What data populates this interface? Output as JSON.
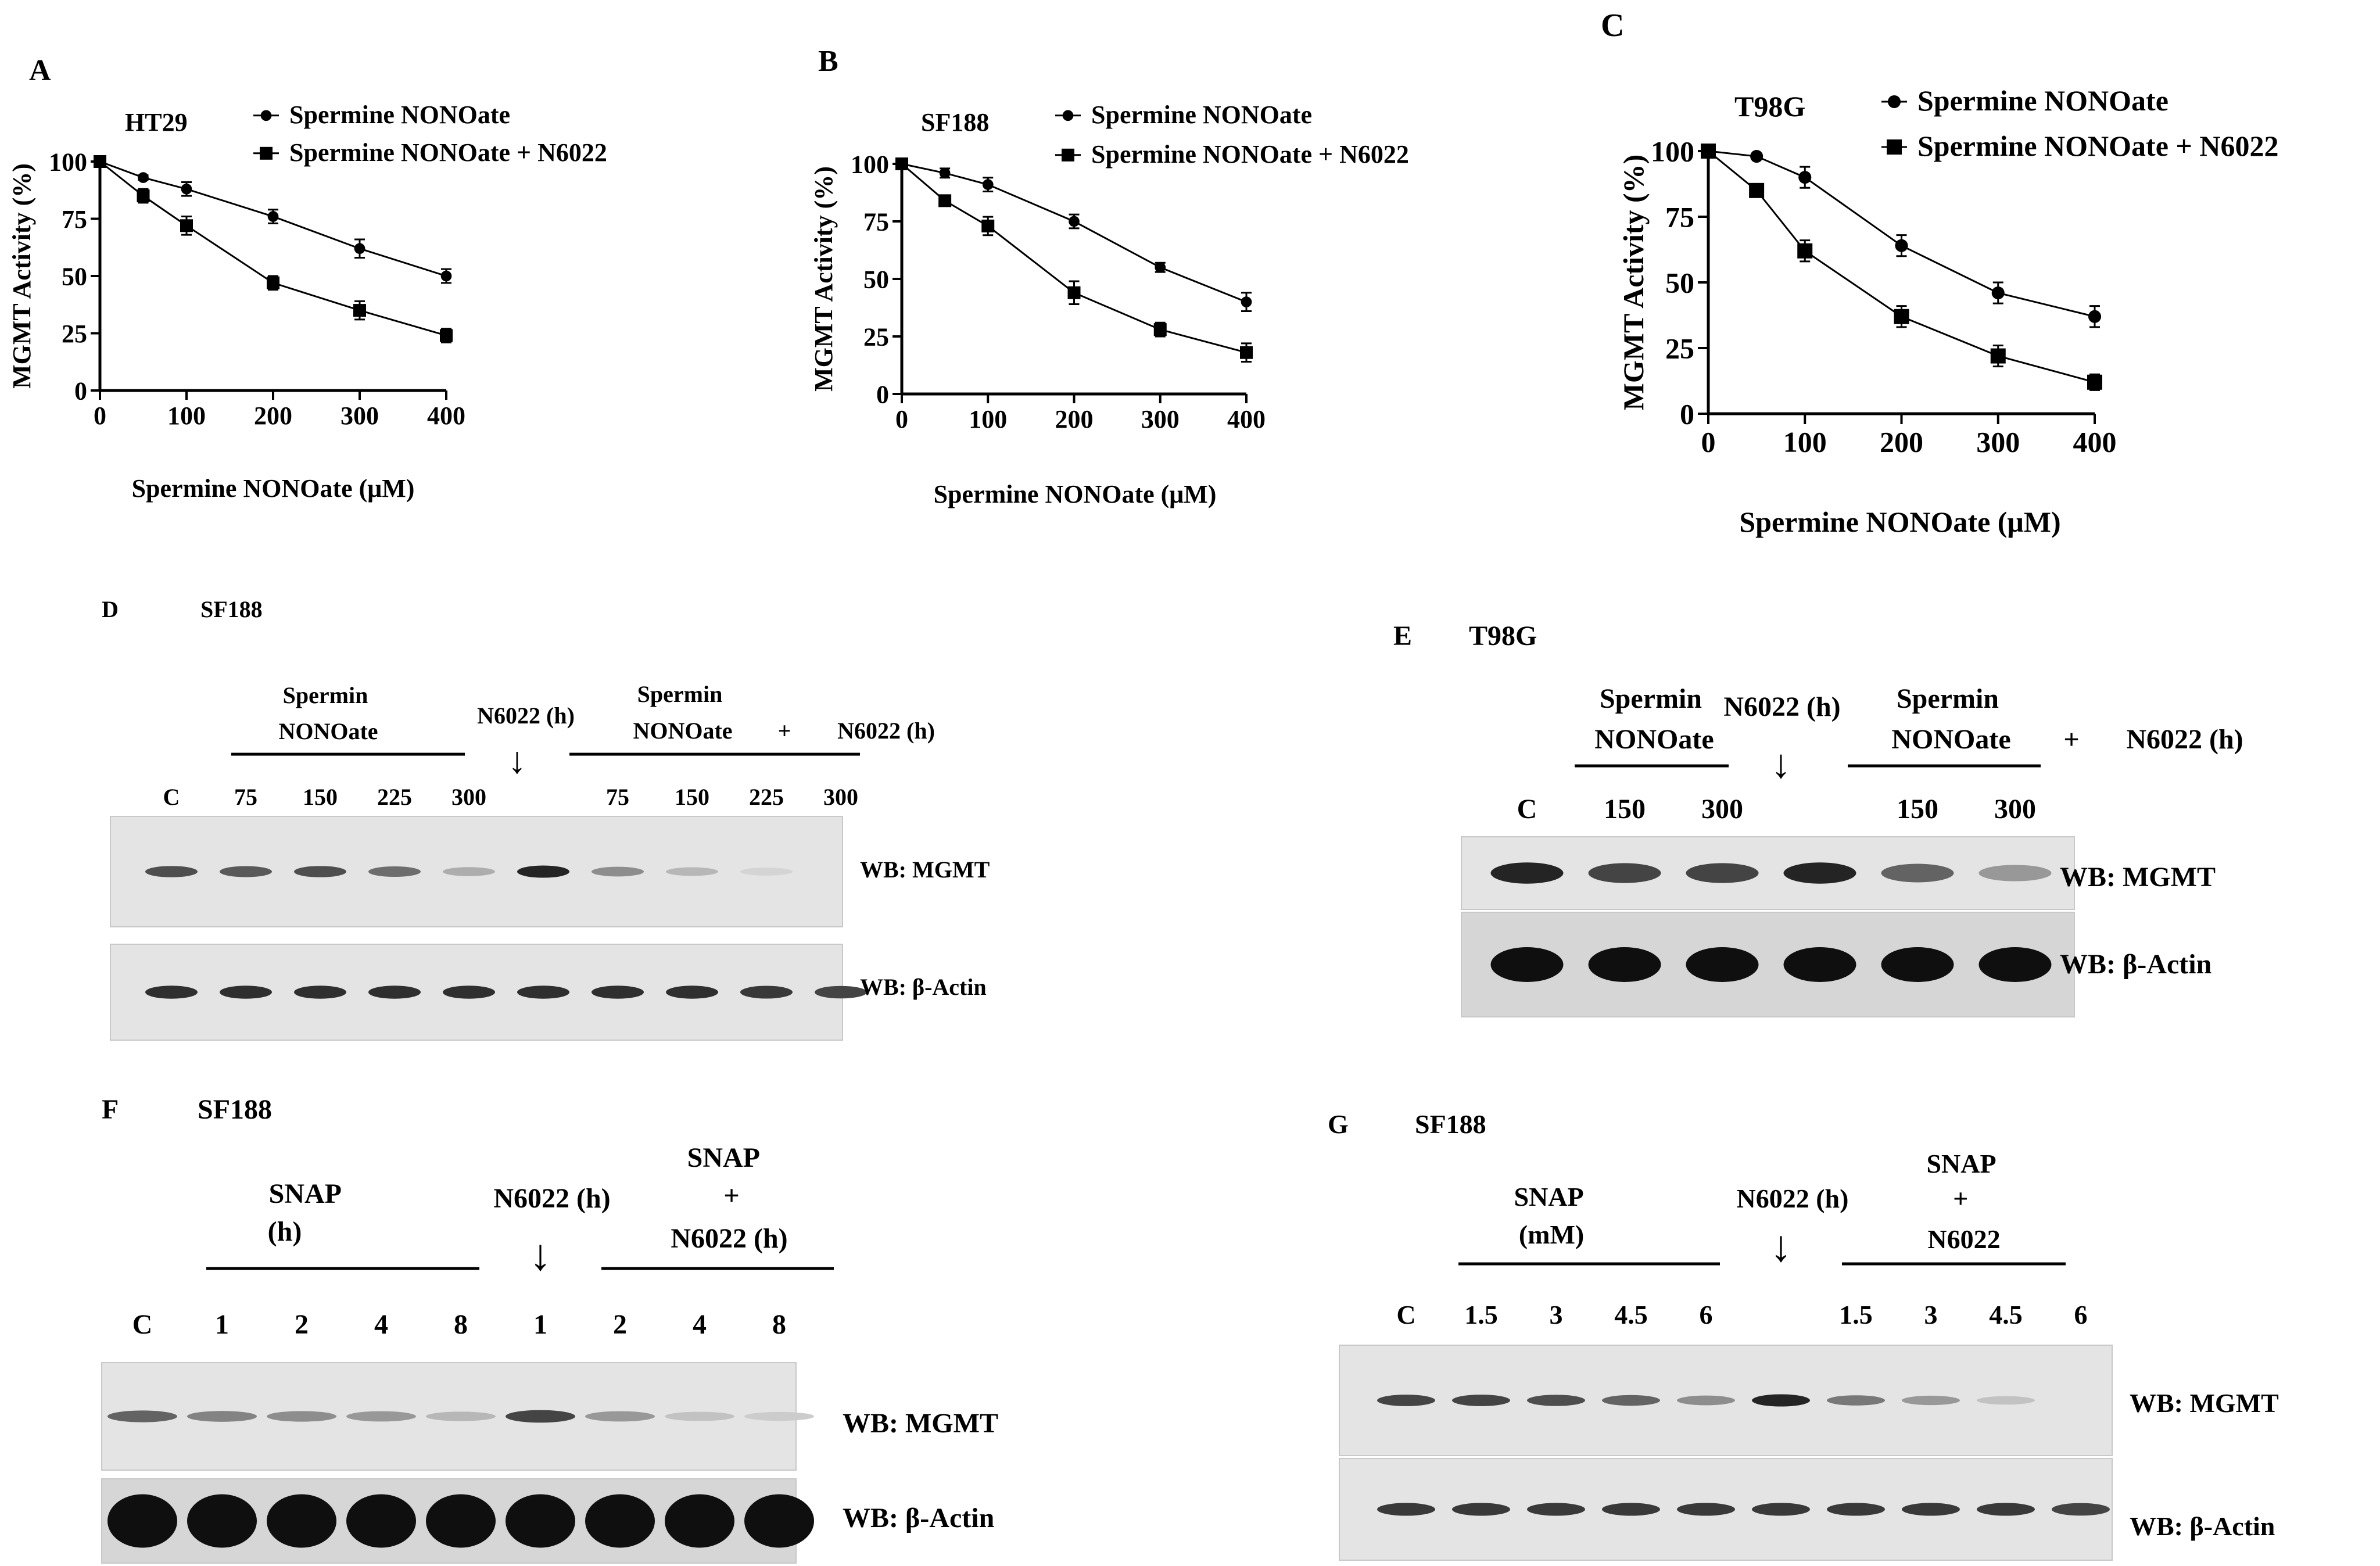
{
  "charts": [
    {
      "id": "A",
      "panel_label": "A",
      "cell_line": "HT29",
      "xlabel": "Spermine NONOate (μM)",
      "ylabel": "MGMT Activity (%)",
      "x_ticks": [
        0,
        100,
        200,
        300,
        400
      ],
      "y_ticks": [
        0,
        25,
        50,
        75,
        100
      ],
      "chart_data": {
        "type": "line",
        "x": [
          0,
          50,
          100,
          200,
          300,
          400
        ],
        "xlim": [
          0,
          400
        ],
        "ylim": [
          0,
          100
        ],
        "legend": "top-right",
        "series": [
          {
            "name": "Spermine NONOate",
            "marker": "circle",
            "values": [
              100,
              93,
              88,
              76,
              62,
              50
            ],
            "errors": [
              0,
              1,
              3,
              3,
              4,
              3
            ]
          },
          {
            "name": "Spermine NONOate + N6022",
            "marker": "square",
            "values": [
              100,
              85,
              72,
              47,
              35,
              24
            ],
            "errors": [
              0,
              3,
              4,
              3,
              4,
              3
            ]
          }
        ]
      }
    },
    {
      "id": "B",
      "panel_label": "B",
      "cell_line": "SF188",
      "xlabel": "Spermine NONOate (μM)",
      "ylabel": "MGMT Activity (%)",
      "x_ticks": [
        0,
        100,
        200,
        300,
        400
      ],
      "y_ticks": [
        0,
        25,
        50,
        75,
        100
      ],
      "chart_data": {
        "type": "line",
        "x": [
          0,
          50,
          100,
          200,
          300,
          400
        ],
        "xlim": [
          0,
          400
        ],
        "ylim": [
          0,
          100
        ],
        "legend": "top-right",
        "series": [
          {
            "name": "Spermine NONOate",
            "marker": "circle",
            "values": [
              100,
              96,
              91,
              75,
              55,
              40
            ],
            "errors": [
              0,
              2,
              3,
              3,
              2,
              4
            ]
          },
          {
            "name": "Spermine NONOate + N6022",
            "marker": "square",
            "values": [
              100,
              84,
              73,
              44,
              28,
              18
            ],
            "errors": [
              0,
              2,
              4,
              5,
              3,
              4
            ]
          }
        ]
      }
    },
    {
      "id": "C",
      "panel_label": "C",
      "cell_line": "T98G",
      "xlabel": "Spermine NONOate (μM)",
      "ylabel": "MGMT Activity (%)",
      "x_ticks": [
        0,
        100,
        200,
        300,
        400
      ],
      "y_ticks": [
        0,
        25,
        50,
        75,
        100
      ],
      "chart_data": {
        "type": "line",
        "x": [
          0,
          50,
          100,
          200,
          300,
          400
        ],
        "xlim": [
          0,
          400
        ],
        "ylim": [
          0,
          100
        ],
        "legend": "top-right",
        "series": [
          {
            "name": "Spermine NONOate",
            "marker": "circle",
            "values": [
              100,
              98,
              90,
              64,
              46,
              37
            ],
            "errors": [
              0,
              1,
              4,
              4,
              4,
              4
            ]
          },
          {
            "name": "Spermine NONOate + N6022",
            "marker": "square",
            "values": [
              100,
              85,
              62,
              37,
              22,
              12
            ],
            "errors": [
              0,
              2,
              4,
              4,
              4,
              3
            ]
          }
        ]
      }
    }
  ],
  "blots": {
    "D": {
      "panel_label": "D",
      "cell_line": "SF188",
      "group1": "Spermin NONOate",
      "arrow_label": "N6022 (h)",
      "group2": "Spermin NONOate",
      "plus": "+",
      "group2_suffix": "N6022 (h)",
      "lanes": [
        "C",
        "75",
        "150",
        "225",
        "300",
        "",
        "75",
        "150",
        "225",
        "300"
      ],
      "rows": [
        {
          "label": "WB: MGMT",
          "intensities": [
            0.7,
            0.65,
            0.7,
            0.55,
            0.25,
            0.9,
            0.4,
            0.2,
            0.06,
            0.0
          ]
        },
        {
          "label": "WB: β-Actin",
          "intensities": [
            0.85,
            0.85,
            0.85,
            0.85,
            0.85,
            0.85,
            0.85,
            0.85,
            0.8,
            0.75
          ]
        }
      ]
    },
    "E": {
      "panel_label": "E",
      "cell_line": "T98G",
      "group1": "Spermin NONOate",
      "arrow_label": "N6022 (h)",
      "group2": "Spermin NONOate",
      "plus": "+",
      "group2_suffix": "N6022 (h)",
      "lanes": [
        "C",
        "150",
        "300",
        "",
        "150",
        "300"
      ],
      "rows": [
        {
          "label": "WB: MGMT",
          "intensities": [
            0.9,
            0.75,
            0.75,
            0.9,
            0.6,
            0.35
          ]
        },
        {
          "label": "WB: β-Actin",
          "intensities": [
            1.0,
            1.0,
            1.0,
            1.0,
            1.0,
            1.0
          ]
        }
      ]
    },
    "F": {
      "panel_label": "F",
      "cell_line": "SF188",
      "group1": "SNAP (h)",
      "arrow_label": "N6022 (h)",
      "group2": "SNAP + N6022 (h)",
      "lanes": [
        "C",
        "1",
        "2",
        "4",
        "8",
        "1",
        "2",
        "4",
        "8"
      ],
      "rows": [
        {
          "label": "WB: MGMT",
          "intensities": [
            0.6,
            0.45,
            0.4,
            0.35,
            0.2,
            0.75,
            0.35,
            0.15,
            0.1
          ]
        },
        {
          "label": "WB: β-Actin",
          "intensities": [
            1.0,
            1.0,
            1.0,
            1.0,
            1.0,
            1.0,
            1.0,
            1.0,
            1.0
          ]
        }
      ]
    },
    "G": {
      "panel_label": "G",
      "cell_line": "SF188",
      "group1": "SNAP (mM)",
      "arrow_label": "N6022 (h)",
      "group2": "SNAP + N6022",
      "lanes": [
        "C",
        "1.5",
        "3",
        "4.5",
        "6",
        "",
        "1.5",
        "3",
        "4.5",
        "6"
      ],
      "rows": [
        {
          "label": "WB: MGMT",
          "intensities": [
            0.75,
            0.75,
            0.7,
            0.6,
            0.4,
            0.9,
            0.5,
            0.35,
            0.15,
            0.0
          ]
        },
        {
          "label": "WB: β-Actin",
          "intensities": [
            0.8,
            0.8,
            0.8,
            0.8,
            0.8,
            0.8,
            0.8,
            0.8,
            0.8,
            0.75
          ]
        }
      ]
    }
  }
}
